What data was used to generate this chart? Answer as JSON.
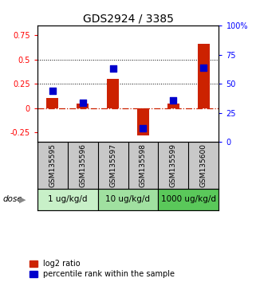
{
  "title": "GDS2924 / 3385",
  "samples": [
    "GSM135595",
    "GSM135596",
    "GSM135597",
    "GSM135598",
    "GSM135599",
    "GSM135600"
  ],
  "log2_ratio": [
    0.1,
    0.05,
    0.3,
    -0.28,
    0.05,
    0.66
  ],
  "percentile_rank": [
    0.44,
    0.34,
    0.63,
    0.12,
    0.355,
    0.635
  ],
  "dose_groups": [
    {
      "label": "1 ug/kg/d",
      "start": 0,
      "end": 1,
      "color": "#c8f0c8"
    },
    {
      "label": "10 ug/kg/d",
      "start": 2,
      "end": 3,
      "color": "#a0e0a0"
    },
    {
      "label": "1000 ug/kg/d",
      "start": 4,
      "end": 5,
      "color": "#5ac85a"
    }
  ],
  "ylim_left": [
    -0.35,
    0.85
  ],
  "ylim_right": [
    0,
    1.0
  ],
  "yticks_left": [
    -0.25,
    0,
    0.25,
    0.5,
    0.75
  ],
  "yticks_right": [
    0,
    0.25,
    0.5,
    0.75,
    1.0
  ],
  "ytick_labels_right": [
    "0",
    "25",
    "50",
    "75",
    "100%"
  ],
  "ytick_labels_left": [
    "-0.25",
    "0",
    "0.25",
    "0.5",
    "0.75"
  ],
  "hlines": [
    0.5,
    0.25
  ],
  "bar_color": "#cc2200",
  "dot_color": "#0000cc",
  "zero_line_color": "#cc2200",
  "sample_bg_color": "#c8c8c8",
  "bar_width": 0.4,
  "dot_size": 28,
  "title_fontsize": 10,
  "tick_fontsize": 7,
  "legend_fontsize": 7,
  "sample_fontsize": 6.5,
  "dose_fontsize": 7.5
}
